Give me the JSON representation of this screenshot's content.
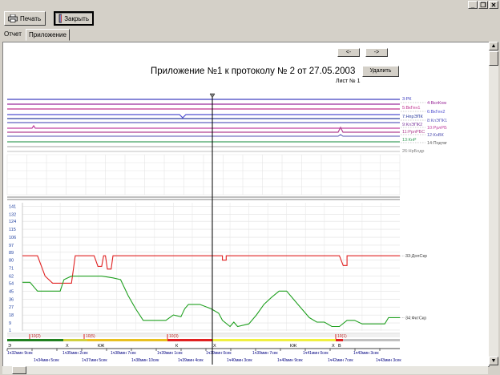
{
  "window": {
    "min_glyph": "_",
    "max_glyph": "❐",
    "close_glyph": "✕"
  },
  "toolbar": {
    "print_label": "Печать",
    "print_icon": "printer-icon",
    "close_label": "Закрыть",
    "close_icon": "door-exit-icon"
  },
  "tabs": [
    {
      "label": "Отчет",
      "active": false
    },
    {
      "label": "Приложение",
      "active": true
    }
  ],
  "nav": {
    "prev_label": "<-",
    "next_label": "->"
  },
  "title": "Приложение №1 к протоколу № 2 от 27.05.2003",
  "sheet_label": "Лист № 1",
  "delete_label": "Удалить",
  "signals": [
    {
      "label": "3:РК",
      "color": "#4040c0"
    },
    {
      "label": "4:ВклКом",
      "color": "#9a2a9a"
    },
    {
      "label": "5:ВкГен1",
      "color": "#c03090"
    },
    {
      "label": "6:ВкГен2",
      "color": "#5050d0"
    },
    {
      "label": "7:НпрЭПК",
      "color": "#3040a0"
    },
    {
      "label": "8:КлЭПК1",
      "color": "#6060c0"
    },
    {
      "label": "9:КлЭПК2",
      "color": "#8040a0"
    },
    {
      "label": "10:РрлРБ",
      "color": "#c040a0"
    },
    {
      "label": "11:РрлРБС",
      "color": "#b04090"
    },
    {
      "label": "12:КнВК",
      "color": "#5050b0"
    },
    {
      "label": "13:КнР",
      "color": "#40a060"
    },
    {
      "label": "14:Подтвг",
      "color": "#606060"
    },
    {
      "label": "26:НрБодр",
      "color": "#808080"
    }
  ],
  "analog": {
    "y_ticks": [
      "141",
      "132",
      "124",
      "115",
      "106",
      "97",
      "89",
      "80",
      "71",
      "62",
      "54",
      "45",
      "36",
      "27",
      "18",
      "9",
      "1"
    ],
    "series": [
      {
        "name": "33:ДопСкр",
        "color": "#e02020"
      },
      {
        "name": "34:ФктСкр",
        "color": "#20a020"
      }
    ],
    "chart_data": {
      "type": "line",
      "ylim": [
        0,
        145
      ],
      "xlim": [
        0,
        100
      ],
      "series": [
        {
          "name": "33:ДопСкр",
          "values": [
            [
              0,
              85
            ],
            [
              4,
              85
            ],
            [
              6,
              62
            ],
            [
              8,
              54
            ],
            [
              13,
              54
            ],
            [
              14,
              85
            ],
            [
              19,
              85
            ],
            [
              20,
              73
            ],
            [
              21,
              73
            ],
            [
              21.5,
              85
            ],
            [
              22,
              85
            ],
            [
              22.5,
              70
            ],
            [
              23.5,
              70
            ],
            [
              24,
              85
            ],
            [
              53,
              85
            ],
            [
              53,
              80
            ],
            [
              54,
              80
            ],
            [
              54,
              85
            ],
            [
              55,
              85
            ],
            [
              55,
              85
            ],
            [
              84,
              85
            ],
            [
              85,
              74
            ],
            [
              86,
              74
            ],
            [
              86,
              85
            ],
            [
              100,
              85
            ]
          ]
        },
        {
          "name": "34:ФктСкр",
          "values": [
            [
              0,
              55
            ],
            [
              2,
              55
            ],
            [
              4,
              45
            ],
            [
              10,
              45
            ],
            [
              11,
              58
            ],
            [
              13,
              62
            ],
            [
              21,
              62
            ],
            [
              24,
              60
            ],
            [
              26,
              58
            ],
            [
              28,
              40
            ],
            [
              30,
              25
            ],
            [
              32,
              12
            ],
            [
              35,
              12
            ],
            [
              38,
              12
            ],
            [
              40,
              18
            ],
            [
              42,
              16
            ],
            [
              43,
              25
            ],
            [
              44,
              30
            ],
            [
              47,
              30
            ],
            [
              50,
              25
            ],
            [
              52,
              20
            ],
            [
              53,
              12
            ],
            [
              55,
              5
            ],
            [
              56,
              10
            ],
            [
              57,
              5
            ],
            [
              60,
              8
            ],
            [
              62,
              18
            ],
            [
              64,
              30
            ],
            [
              66,
              38
            ],
            [
              68,
              45
            ],
            [
              70,
              45
            ],
            [
              72,
              35
            ],
            [
              74,
              25
            ],
            [
              76,
              15
            ],
            [
              78,
              10
            ],
            [
              80,
              10
            ],
            [
              82,
              5
            ],
            [
              84,
              5
            ],
            [
              86,
              12
            ],
            [
              88,
              12
            ],
            [
              90,
              8
            ],
            [
              96,
              8
            ],
            [
              97,
              15
            ],
            [
              100,
              15
            ]
          ]
        }
      ]
    }
  },
  "events": [
    {
      "label": "10(2)"
    },
    {
      "label": "10(5)"
    },
    {
      "label": "10(3)"
    },
    {
      "label": "10(1)"
    }
  ],
  "markers": [
    {
      "label": "Э"
    },
    {
      "label": "Х"
    },
    {
      "label": "КЖ"
    },
    {
      "label": "К"
    },
    {
      "label": "Х"
    },
    {
      "label": "КЖ"
    },
    {
      "label": "Х"
    },
    {
      "label": "В"
    }
  ],
  "time_top": [
    "1ч32мин 9сек",
    "1ч35мин 2сек",
    "1ч38мин 7сек",
    "1ч39мин 1сек",
    "1ч39мин 0сек",
    "1ч39мин 7сек",
    "1ч41мин 0сек",
    "1ч43мин 3сек"
  ],
  "time_bottom": [
    "1ч34мин 5сек",
    "1ч37мин 5сек",
    "1ч38мин 10сек",
    "1ч39мин 4сек",
    "1ч40мин 3сек",
    "1ч40мин 9сек",
    "1ч42мин 7сек",
    "1ч43мин 3сек"
  ]
}
